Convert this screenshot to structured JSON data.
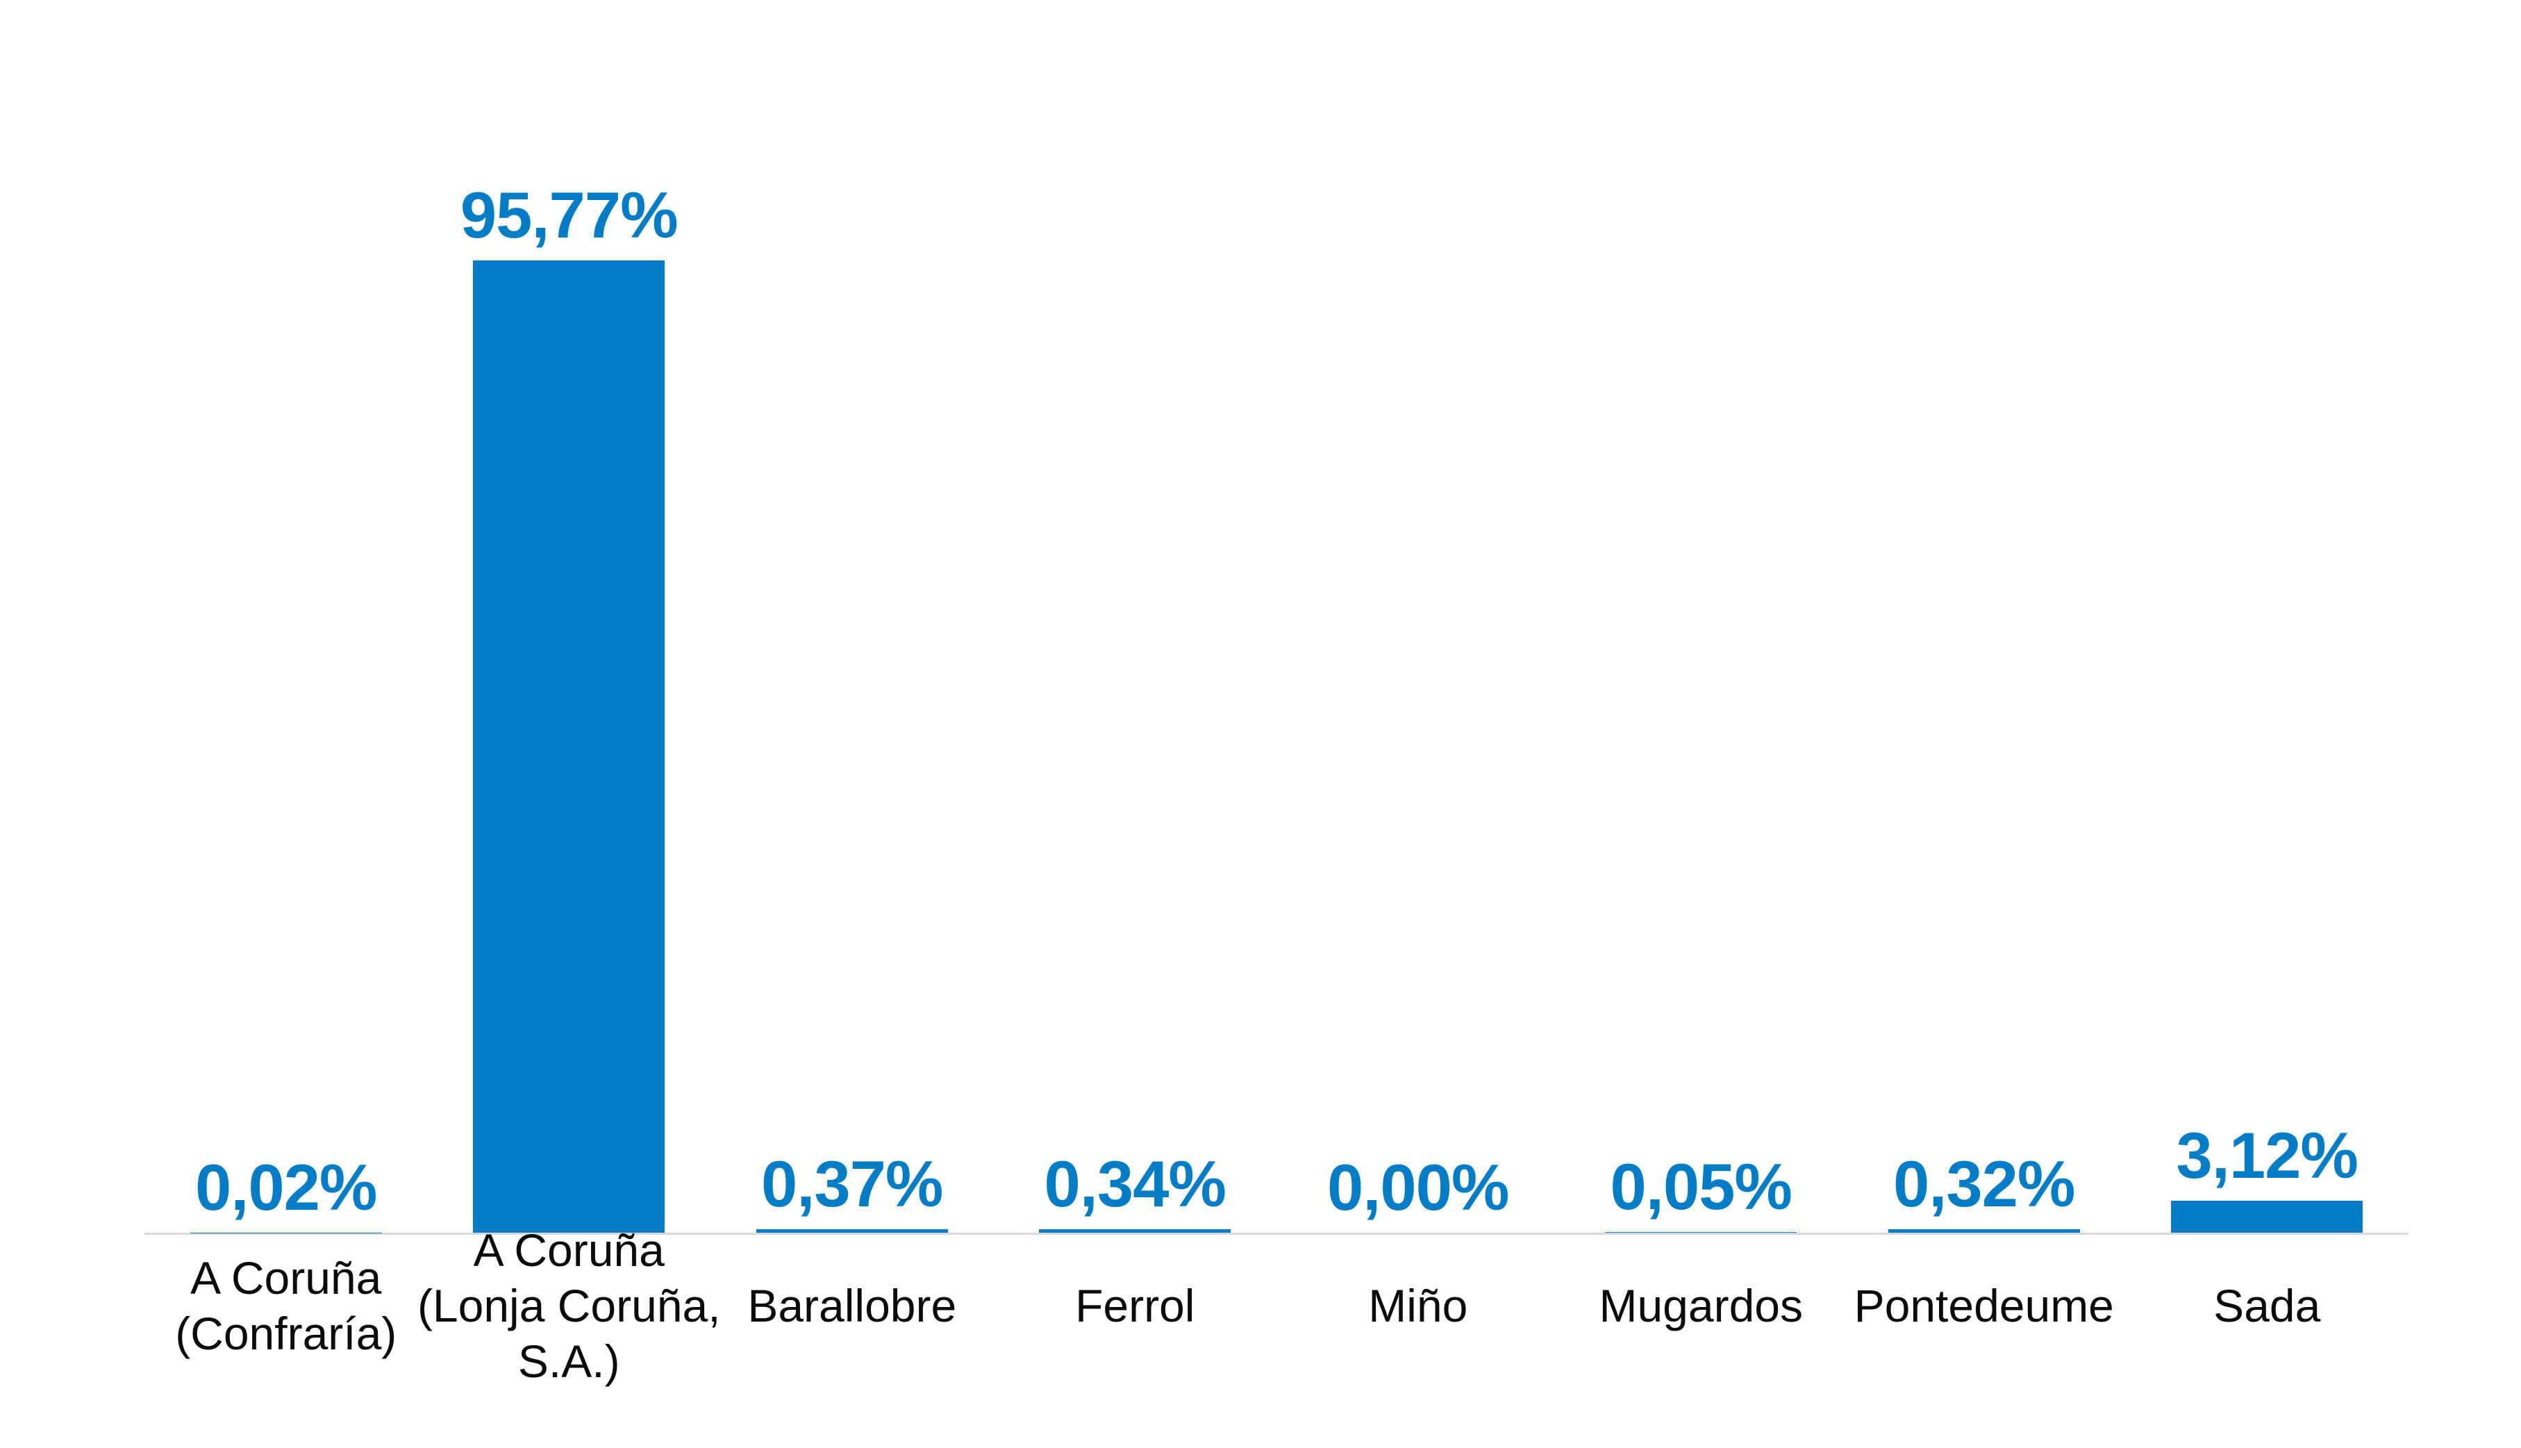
{
  "chart_data": {
    "type": "bar",
    "categories": [
      "A Coruña (Confraría)",
      "A Coruña (Lonja Coruña, S.A.)",
      "Barallobre",
      "Ferrol",
      "Miño",
      "Mugardos",
      "Pontedeume",
      "Sada"
    ],
    "category_label_lines": [
      [
        "A Coruña",
        "(Confraría)"
      ],
      [
        "A Coruña",
        "(Lonja Coruña,",
        "S.A.)"
      ],
      [
        "Barallobre"
      ],
      [
        "Ferrol"
      ],
      [
        "Miño"
      ],
      [
        "Mugardos"
      ],
      [
        "Pontedeume"
      ],
      [
        "Sada"
      ]
    ],
    "values": [
      0.02,
      95.77,
      0.37,
      0.34,
      0.0,
      0.05,
      0.32,
      3.12
    ],
    "value_labels": [
      "0,02%",
      "95,77%",
      "0,37%",
      "0,34%",
      "0,00%",
      "0,05%",
      "0,32%",
      "3,12%"
    ],
    "unit": "%",
    "decimal_separator": ",",
    "ylim": [
      0,
      100
    ],
    "gridlines": false,
    "legend": false,
    "y_axis_visible": false,
    "x_axis_baseline_visible": true,
    "colors": {
      "bar": "#047DC6",
      "value_label": "#047DC6",
      "category_label": "#0B0B0B",
      "axis_line": "#D9D9D9",
      "background": "#FFFFFF"
    }
  }
}
